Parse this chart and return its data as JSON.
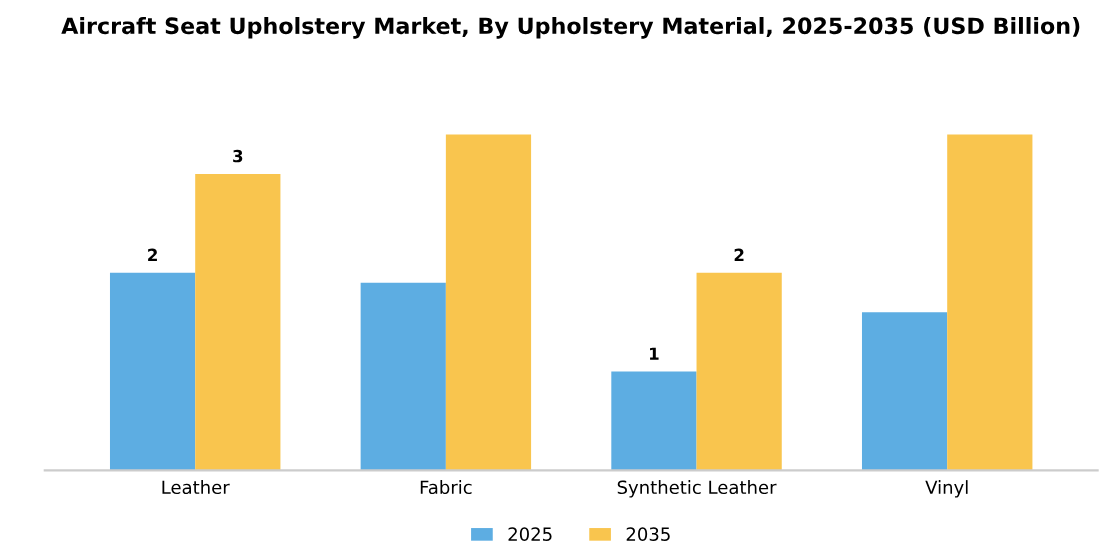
{
  "chart_data": {
    "type": "bar",
    "title": "Aircraft Seat Upholstery Market, By Upholstery Material, 2025-2035 (USD Billion)",
    "categories": [
      "Leather",
      "Fabric",
      "Synthetic Leather",
      "Vinyl"
    ],
    "legend": "bottom",
    "grid": false,
    "series": [
      {
        "name": "2025",
        "color": "#5dade2",
        "values": [
          2,
          1.9,
          1,
          1.6
        ],
        "value_labels": [
          "2",
          null,
          "1",
          null
        ]
      },
      {
        "name": "2035",
        "color": "#f9c54e",
        "values": [
          3,
          3.4,
          2,
          3.4
        ],
        "value_labels": [
          "3",
          null,
          "2",
          null
        ]
      }
    ]
  }
}
